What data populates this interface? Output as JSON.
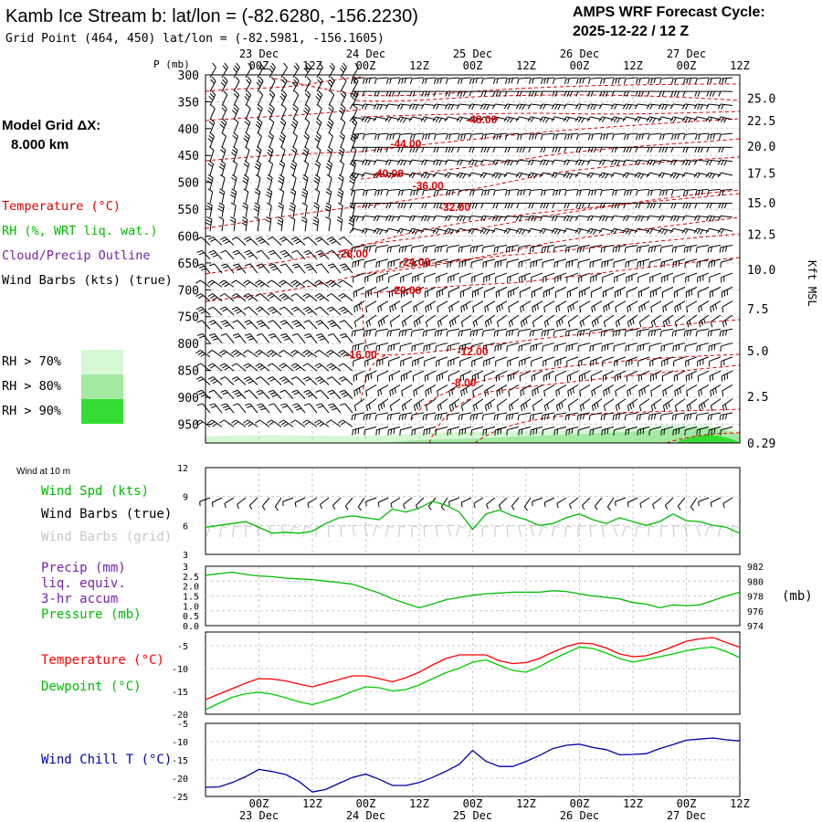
{
  "header": {
    "title": "Kamb Ice Stream b:  lat/lon = (-82.6280, -156.2230)",
    "subtitle": "Grid Point (464, 450) lat/lon = (-82.5981, -156.1605)",
    "cycle_label": "AMPS WRF Forecast Cycle:",
    "cycle_value": "2025-12-22 / 12  Z"
  },
  "side": {
    "grid_label": "Model Grid ΔX:",
    "grid_value": "8.000 km",
    "legend_temperature": "Temperature (°C)",
    "legend_rh": "RH (%, WRT liq. wat.)",
    "legend_cloud": "Cloud/Precip Outline",
    "legend_wind": "Wind Barbs (kts) (true)",
    "rh_levels": [
      "RH > 70%",
      "RH > 80%",
      "RH > 90%"
    ],
    "rh_colors": [
      "#d4f7d4",
      "#a2eaa2",
      "#33dd33"
    ]
  },
  "time_axis": {
    "hour_labels": [
      "00Z",
      "12Z",
      "00Z",
      "12Z",
      "00Z",
      "12Z",
      "00Z",
      "12Z",
      "00Z",
      "12Z"
    ],
    "day_labels": [
      "23 Dec",
      "24 Dec",
      "25 Dec",
      "26 Dec",
      "27 Dec"
    ],
    "hours_range": [
      -12,
      108
    ]
  },
  "panels": {
    "wind10_title": "Wind at 10 m",
    "wind_spd_label": "Wind Spd (kts)",
    "wind_barbs_true_label": "Wind Barbs (true)",
    "wind_barbs_grid_label": "Wind Barbs (grid)",
    "precip_label": "Precip (mm)",
    "precip_sub1": "liq. equiv.",
    "precip_sub2": "3-hr accum",
    "pressure_label": "Pressure (mb)",
    "pressure_unit": "(mb)",
    "temperature_label": "Temperature (°C)",
    "dewpoint_label": "Dewpoint (°C)",
    "windchill_label": "Wind Chill T (°C)"
  },
  "chart_data": [
    {
      "type": "cross-section",
      "name": "upper-air time-height section",
      "ylabel": "P (mb)",
      "right_label": "Kft MSL",
      "pressure_ticks": [
        300,
        350,
        400,
        450,
        500,
        550,
        600,
        650,
        700,
        750,
        800,
        850,
        900,
        950
      ],
      "ylim": [
        300,
        985
      ],
      "kft_labels": [
        "25.0",
        "22.5",
        "20.0",
        "17.5",
        "15.0",
        "12.5",
        "10.0",
        "7.5",
        "5.0",
        "2.5",
        "0.29"
      ],
      "kft_pressures": [
        343,
        385,
        433,
        483,
        538,
        597,
        662,
        735,
        813,
        898,
        985
      ],
      "temperature_contour_labels": [
        {
          "text": "-48.00",
          "hour": 50,
          "p": 390
        },
        {
          "text": "-44.00",
          "hour": 33,
          "p": 435
        },
        {
          "text": "-40.00",
          "hour": 29,
          "p": 490
        },
        {
          "text": "-36.00",
          "hour": 38,
          "p": 513
        },
        {
          "text": "-32.00",
          "hour": 44,
          "p": 553
        },
        {
          "text": "-28.00",
          "hour": 21,
          "p": 640
        },
        {
          "text": "-24.00",
          "hour": 35,
          "p": 655
        },
        {
          "text": "-20.00",
          "hour": 33,
          "p": 708
        },
        {
          "text": "-16.00",
          "hour": 23,
          "p": 828
        },
        {
          "text": "-12.00",
          "hour": 48,
          "p": 822
        },
        {
          "text": "-8.00",
          "hour": 46,
          "p": 880
        }
      ]
    },
    {
      "type": "line",
      "name": "10 m wind speed",
      "ylim": [
        3,
        12
      ],
      "yticks": [
        3,
        6,
        9,
        12
      ],
      "x": [
        -12,
        -9,
        -6,
        -3,
        0,
        3,
        6,
        9,
        12,
        15,
        18,
        21,
        24,
        27,
        30,
        33,
        36,
        39,
        42,
        45,
        48,
        51,
        54,
        57,
        60,
        63,
        66,
        69,
        72,
        75,
        78,
        81,
        84,
        87,
        90,
        93,
        96,
        99,
        102,
        105,
        108
      ],
      "values": [
        5.8,
        6.0,
        6.2,
        6.4,
        5.8,
        5.2,
        5.3,
        5.2,
        5.4,
        6.2,
        6.8,
        7.0,
        6.8,
        6.6,
        7.7,
        7.4,
        7.8,
        8.5,
        8.1,
        7.4,
        5.6,
        7.2,
        7.6,
        7.0,
        6.6,
        6.0,
        6.2,
        6.8,
        7.2,
        6.6,
        6.2,
        6.8,
        6.4,
        6.0,
        6.4,
        7.2,
        6.5,
        6.4,
        6.0,
        5.8,
        5.2
      ]
    },
    {
      "type": "line",
      "name": "precip and pressure",
      "left_ticks": [
        "0.0",
        "0.5",
        "1.0",
        "1.5",
        "2.0",
        "2.5",
        "3"
      ],
      "left_ylim": [
        0,
        3
      ],
      "right_ticks": [
        "974",
        "976",
        "978",
        "980",
        "982"
      ],
      "ylim": [
        974,
        982
      ],
      "x": [
        -12,
        -9,
        -6,
        -3,
        0,
        3,
        6,
        9,
        12,
        15,
        18,
        21,
        24,
        27,
        30,
        33,
        36,
        39,
        42,
        45,
        48,
        51,
        54,
        57,
        60,
        63,
        66,
        69,
        72,
        75,
        78,
        81,
        84,
        87,
        90,
        93,
        96,
        99,
        102,
        105,
        108
      ],
      "values": [
        980.8,
        981.0,
        981.2,
        980.9,
        980.7,
        980.6,
        980.4,
        980.3,
        980.2,
        980.0,
        979.8,
        979.6,
        979.0,
        978.4,
        977.6,
        977.0,
        976.4,
        976.9,
        977.5,
        977.8,
        978.1,
        978.3,
        978.4,
        978.5,
        978.5,
        978.5,
        978.7,
        978.6,
        978.3,
        978.0,
        977.8,
        977.6,
        977.1,
        976.9,
        976.4,
        976.8,
        976.7,
        976.8,
        977.4,
        978.0,
        978.5
      ]
    },
    {
      "type": "line",
      "name": "temperature and dewpoint",
      "ylim": [
        -20,
        -2
      ],
      "yticks": [
        -20,
        -15,
        -10,
        -5
      ],
      "x": [
        -12,
        -9,
        -6,
        -3,
        0,
        3,
        6,
        9,
        12,
        15,
        18,
        21,
        24,
        27,
        30,
        33,
        36,
        39,
        42,
        45,
        48,
        51,
        54,
        57,
        60,
        63,
        66,
        69,
        72,
        75,
        78,
        81,
        84,
        87,
        90,
        93,
        96,
        99,
        102,
        105,
        108
      ],
      "series": [
        {
          "name": "Temperature",
          "color": "#ff0000",
          "values": [
            -16.8,
            -15.6,
            -14.4,
            -13.2,
            -12.2,
            -12.3,
            -12.7,
            -13.4,
            -14.0,
            -13.2,
            -12.4,
            -11.6,
            -11.6,
            -12.2,
            -12.9,
            -12.0,
            -10.8,
            -9.2,
            -7.8,
            -7.0,
            -7.0,
            -7.0,
            -8.3,
            -8.9,
            -8.7,
            -7.8,
            -6.4,
            -5.2,
            -4.4,
            -4.6,
            -5.5,
            -6.8,
            -7.4,
            -7.2,
            -6.3,
            -5.2,
            -4.0,
            -3.5,
            -3.2,
            -4.3,
            -5.3
          ]
        },
        {
          "name": "Dewpoint",
          "color": "#00cc00",
          "values": [
            -19.0,
            -17.6,
            -16.3,
            -15.5,
            -15.2,
            -15.6,
            -16.4,
            -17.3,
            -17.9,
            -17.1,
            -16.2,
            -15.0,
            -14.0,
            -14.2,
            -14.9,
            -14.6,
            -13.6,
            -12.2,
            -10.9,
            -9.9,
            -8.6,
            -8.1,
            -9.3,
            -10.4,
            -10.8,
            -9.6,
            -8.0,
            -6.6,
            -5.3,
            -5.6,
            -6.6,
            -7.8,
            -8.6,
            -8.0,
            -7.4,
            -6.8,
            -6.1,
            -5.6,
            -5.3,
            -6.3,
            -7.6
          ]
        }
      ]
    },
    {
      "type": "line",
      "name": "wind chill",
      "ylim": [
        -25,
        -5
      ],
      "yticks": [
        -25,
        -20,
        -15,
        -10,
        -5
      ],
      "x": [
        -12,
        -9,
        -6,
        -3,
        0,
        3,
        6,
        9,
        12,
        15,
        18,
        21,
        24,
        27,
        30,
        33,
        36,
        39,
        42,
        45,
        48,
        51,
        54,
        57,
        60,
        63,
        66,
        69,
        72,
        75,
        78,
        81,
        84,
        87,
        90,
        93,
        96,
        99,
        102,
        105,
        108
      ],
      "series": [
        {
          "name": "Wind Chill T",
          "color": "#0000aa",
          "values": [
            -22.5,
            -22.4,
            -21.2,
            -19.6,
            -17.6,
            -18.2,
            -19.0,
            -20.9,
            -23.8,
            -23.1,
            -21.4,
            -19.8,
            -18.9,
            -20.3,
            -22.0,
            -22.0,
            -21.2,
            -19.8,
            -18.1,
            -16.2,
            -12.4,
            -15.4,
            -16.8,
            -16.8,
            -15.4,
            -13.8,
            -11.9,
            -11.0,
            -10.7,
            -11.6,
            -12.2,
            -13.6,
            -13.5,
            -13.3,
            -11.9,
            -10.8,
            -9.6,
            -9.3,
            -9.0,
            -9.5,
            -9.8
          ]
        }
      ]
    }
  ]
}
